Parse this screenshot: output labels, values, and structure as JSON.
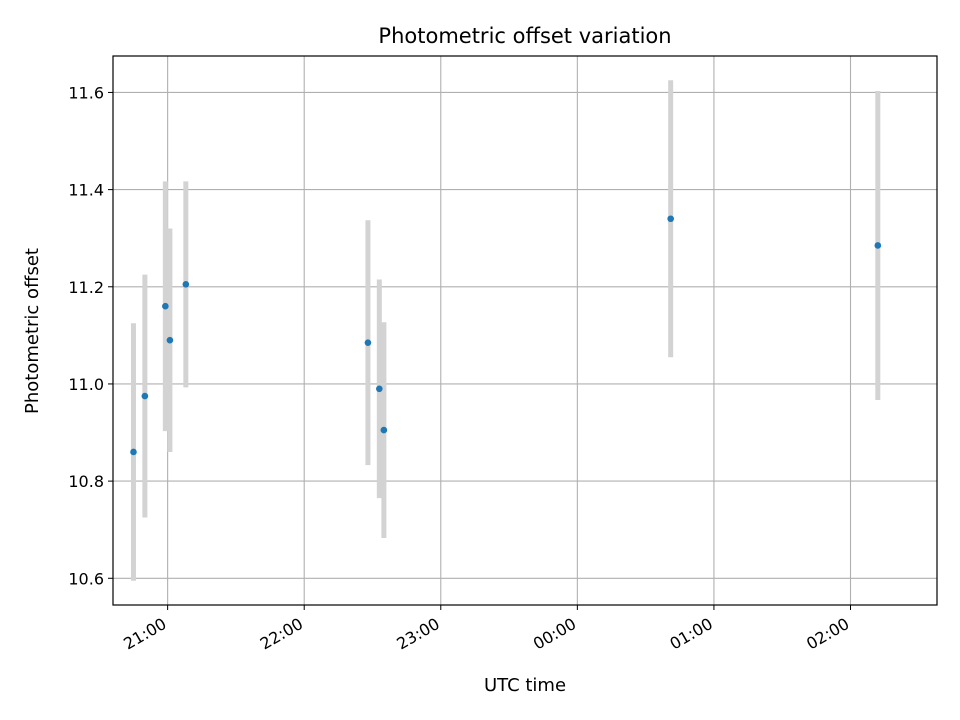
{
  "chart_data": {
    "type": "scatter",
    "title": "Photometric offset variation",
    "xlabel": "UTC time",
    "ylabel": "Photometric offset",
    "xlim": [
      "2000-01-01T20:36",
      "2000-01-02T02:38"
    ],
    "ylim": [
      10.545,
      11.675
    ],
    "x_ticks": [
      {
        "t": "2000-01-01T21:00",
        "label": "21:00"
      },
      {
        "t": "2000-01-01T22:00",
        "label": "22:00"
      },
      {
        "t": "2000-01-01T23:00",
        "label": "23:00"
      },
      {
        "t": "2000-01-02T00:00",
        "label": "00:00"
      },
      {
        "t": "2000-01-02T01:00",
        "label": "01:00"
      },
      {
        "t": "2000-01-02T02:00",
        "label": "02:00"
      }
    ],
    "y_ticks": [
      10.6,
      10.8,
      11.0,
      11.2,
      11.4,
      11.6
    ],
    "y_tick_labels": [
      "10.6",
      "10.8",
      "11.0",
      "11.2",
      "11.4",
      "11.6"
    ],
    "grid": true,
    "point_color": "#1f77b4",
    "errorbar_color": "#d3d3d3",
    "points": [
      {
        "x": "2000-01-01T20:45",
        "y": 10.86,
        "err": 0.265
      },
      {
        "x": "2000-01-01T20:50",
        "y": 10.975,
        "err": 0.25
      },
      {
        "x": "2000-01-01T20:59",
        "y": 11.16,
        "err": 0.257
      },
      {
        "x": "2000-01-01T21:01",
        "y": 11.09,
        "err": 0.23
      },
      {
        "x": "2000-01-01T21:08",
        "y": 11.205,
        "err": 0.212
      },
      {
        "x": "2000-01-01T22:28",
        "y": 11.085,
        "err": 0.252
      },
      {
        "x": "2000-01-01T22:33",
        "y": 10.99,
        "err": 0.225
      },
      {
        "x": "2000-01-01T22:35",
        "y": 10.905,
        "err": 0.222
      },
      {
        "x": "2000-01-02T00:41",
        "y": 11.34,
        "err": 0.285
      },
      {
        "x": "2000-01-02T02:12",
        "y": 11.285,
        "err": 0.318
      }
    ]
  }
}
